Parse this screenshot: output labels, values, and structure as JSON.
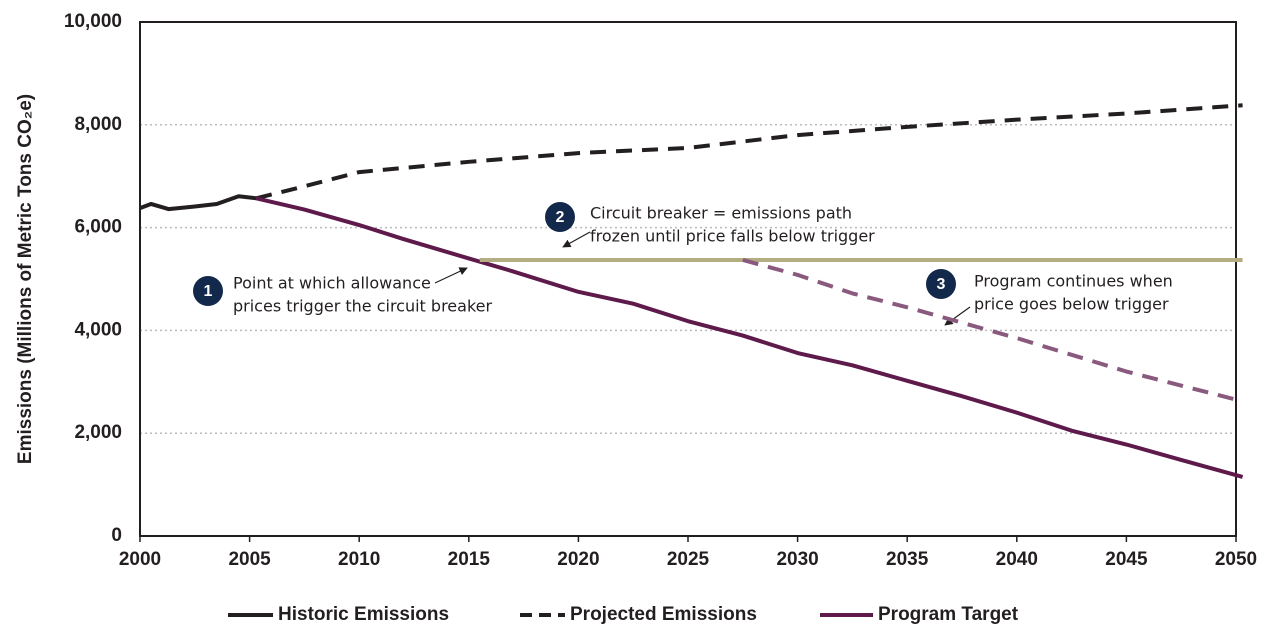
{
  "chart_data": {
    "type": "line",
    "ylabel": "Emissions (Millions of Metric Tons CO₂e)",
    "xlim": [
      2000,
      2050
    ],
    "xticks": [
      2000,
      2005,
      2010,
      2015,
      2020,
      2025,
      2030,
      2035,
      2040,
      2045,
      2050
    ],
    "ylim": [
      0,
      10000
    ],
    "yticks": [
      0,
      {
        "value": 2000,
        "label": "2,000"
      },
      {
        "value": 4000,
        "label": "4,000"
      },
      {
        "value": 6000,
        "label": "6,000"
      },
      {
        "value": 8000,
        "label": "8,000"
      },
      {
        "value": 10000,
        "label": "10,000"
      }
    ],
    "grid": true,
    "legend": "bottom",
    "series": [
      {
        "name": "Historic Emissions",
        "color": "#231f20",
        "line_style": "solid",
        "x": [
          2000,
          2000.5,
          2001.3,
          2002.5,
          2003.5,
          2004.5,
          2005.3
        ],
        "values": [
          6380,
          6460,
          6360,
          6410,
          6460,
          6610,
          6570
        ]
      },
      {
        "name": "Projected Emissions",
        "color": "#231f20",
        "line_style": "dashed",
        "x": [
          2005.3,
          2007,
          2010,
          2015,
          2020,
          2025,
          2030,
          2035,
          2040,
          2045,
          2050.3
        ],
        "values": [
          6570,
          6750,
          7080,
          7280,
          7450,
          7550,
          7800,
          7960,
          8100,
          8220,
          8380
        ]
      },
      {
        "name": "Program Target",
        "color": "#5e1a4b",
        "line_style": "solid",
        "x": [
          2005.3,
          2007.5,
          2010,
          2012,
          2015,
          2017,
          2020,
          2022.5,
          2025,
          2027.5,
          2030,
          2032.5,
          2035,
          2037.5,
          2040,
          2042.5,
          2045,
          2047.5,
          2050.3
        ],
        "values": [
          6570,
          6350,
          6050,
          5780,
          5400,
          5150,
          4750,
          4520,
          4180,
          3900,
          3560,
          3320,
          3020,
          2720,
          2400,
          2050,
          1780,
          1480,
          1150
        ]
      },
      {
        "color": "#b5ad82",
        "line_style": "solid",
        "x": [
          2015.5,
          2050.3
        ],
        "values": [
          5370,
          5370
        ]
      },
      {
        "color": "#8a5a7e",
        "line_style": "dashed",
        "x": [
          2027.5,
          2030,
          2032.5,
          2035,
          2040,
          2045,
          2050.3
        ],
        "values": [
          5370,
          5080,
          4720,
          4450,
          3850,
          3200,
          2620
        ]
      }
    ],
    "annotations": [
      {
        "number": 1,
        "lines": [
          "Point at which allowance",
          "prices trigger the circuit breaker"
        ]
      },
      {
        "number": 2,
        "lines": [
          "Circuit breaker = emissions path",
          "frozen until price falls below trigger"
        ]
      },
      {
        "number": 3,
        "lines": [
          "Program continues when",
          "price goes below trigger"
        ]
      }
    ]
  }
}
